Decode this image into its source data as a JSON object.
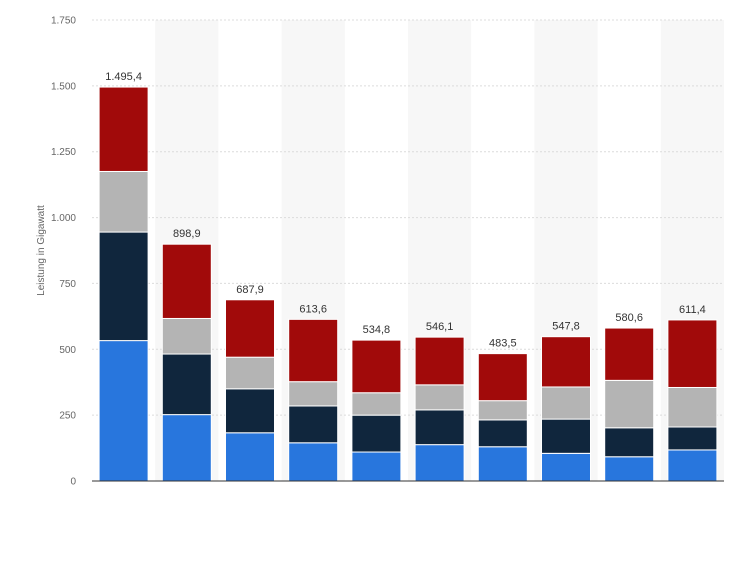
{
  "chart_data": {
    "type": "bar",
    "stacked": true,
    "ylabel": "Leistung in Gigawatt",
    "ylim": [
      0,
      1750
    ],
    "yticks": [
      0,
      250,
      500,
      750,
      1000,
      1250,
      1500,
      1750
    ],
    "ytick_labels": [
      "0",
      "250",
      "500",
      "750",
      "1.000",
      "1.250",
      "1.500",
      "1.750"
    ],
    "grid": true,
    "categories": [
      "",
      "",
      "",
      "",
      "",
      "",
      "",
      "",
      "",
      ""
    ],
    "series": [
      {
        "color": "#2876dd",
        "values": [
          533,
          252,
          183,
          145,
          110,
          138,
          130,
          105,
          92,
          118
        ]
      },
      {
        "color": "#10263d",
        "values": [
          412,
          230,
          167,
          140,
          140,
          132,
          102,
          130,
          110,
          87
        ]
      },
      {
        "color": "#b4b4b4",
        "values": [
          230,
          135,
          120,
          92,
          85,
          95,
          73,
          122,
          180,
          150
        ]
      },
      {
        "color": "#a10a0a",
        "values": [
          320.4,
          281.9,
          217.9,
          236.6,
          199.8,
          181.1,
          178.5,
          190.8,
          198.6,
          256.4
        ]
      }
    ],
    "totals": [
      1495.4,
      898.9,
      687.9,
      613.6,
      534.8,
      546.1,
      483.5,
      547.8,
      580.6,
      611.4
    ],
    "total_labels": [
      "1.495,4",
      "898,9",
      "687,9",
      "613,6",
      "534,8",
      "546,1",
      "483,5",
      "547,8",
      "580,6",
      "611,4"
    ]
  }
}
